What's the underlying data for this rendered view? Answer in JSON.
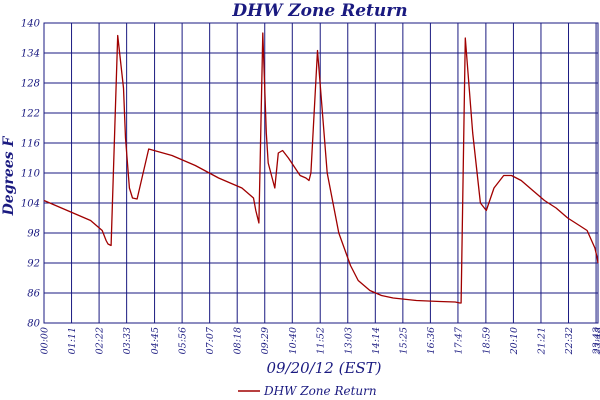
{
  "chart_data": {
    "type": "line",
    "title": "DHW Zone Return",
    "xlabel": "09/20/12 (EST)",
    "ylabel": "Degrees F",
    "ylim": [
      80,
      140
    ],
    "yticks": [
      80,
      86,
      92,
      98,
      104,
      110,
      116,
      122,
      128,
      134,
      140
    ],
    "xticks": [
      "00:00",
      "01:11",
      "02:22",
      "03:33",
      "04:45",
      "05:56",
      "07:07",
      "08:18",
      "09:29",
      "10:40",
      "11:52",
      "13:03",
      "14:14",
      "15:25",
      "16:36",
      "17:47",
      "18:59",
      "20:10",
      "21:21",
      "22:32",
      "23:43",
      "23:48"
    ],
    "grid": true,
    "legend_position": "bottom-center",
    "colors": {
      "series": "#a00000",
      "grid": "#1a1a80",
      "text": "#1a1a80"
    },
    "series": [
      {
        "name": "DHW Zone Return",
        "x": [
          "00:00",
          "01:00",
          "02:00",
          "02:30",
          "02:40",
          "02:45",
          "02:53",
          "03:10",
          "03:25",
          "03:30",
          "03:40",
          "03:48",
          "04:00",
          "04:30",
          "05:30",
          "06:30",
          "07:30",
          "08:30",
          "09:00",
          "09:06",
          "09:14",
          "09:24",
          "09:33",
          "09:38",
          "09:55",
          "10:04",
          "10:15",
          "10:30",
          "11:00",
          "11:15",
          "11:23",
          "11:28",
          "11:45",
          "12:10",
          "12:40",
          "13:10",
          "13:30",
          "14:00",
          "14:30",
          "15:00",
          "16:00",
          "17:00",
          "17:40",
          "17:52",
          "17:55",
          "18:06",
          "18:25",
          "18:45",
          "19:00",
          "19:20",
          "19:45",
          "20:05",
          "20:30",
          "21:00",
          "21:30",
          "22:00",
          "22:30",
          "23:00",
          "23:20",
          "23:40",
          "23:46",
          "23:48"
        ],
        "y": [
          104.5,
          102.5,
          100.5,
          98.5,
          96.5,
          95.8,
          95.5,
          137.5,
          127,
          117,
          107,
          105,
          104.8,
          114.8,
          113.5,
          111.5,
          109,
          107,
          105,
          102.5,
          100,
          138,
          118,
          112,
          107,
          114,
          114.5,
          113,
          109.5,
          109,
          108.5,
          110,
          134.5,
          110,
          98,
          91.5,
          88.5,
          86.5,
          85.5,
          85,
          84.5,
          84.3,
          84.2,
          84,
          84,
          137,
          118,
          104,
          102.5,
          107,
          109.5,
          109.5,
          108.5,
          106.5,
          104.5,
          103,
          101,
          99.5,
          98.5,
          95,
          93,
          92
        ]
      }
    ]
  }
}
